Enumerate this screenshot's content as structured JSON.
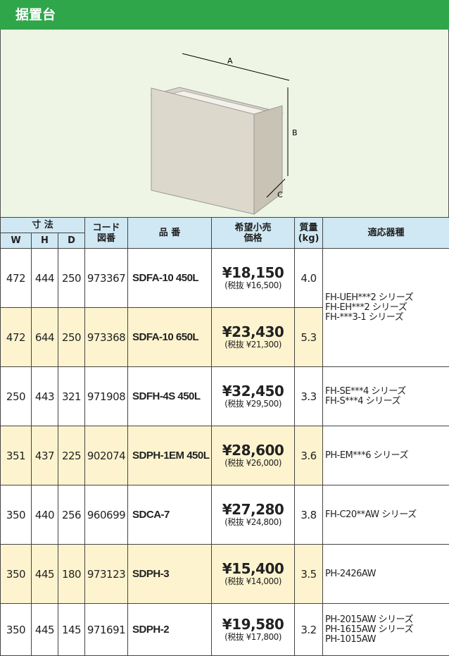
{
  "header": {
    "title": "据置台"
  },
  "figure": {
    "labels": [
      "A",
      "B",
      "C"
    ]
  },
  "table": {
    "head": {
      "size": "寸 法",
      "w": "W",
      "h": "H",
      "d": "D",
      "code": [
        "コード",
        "図番"
      ],
      "model": "品 番",
      "price": [
        "希望小売",
        "価格"
      ],
      "mass": [
        "質量",
        "(kg)"
      ],
      "compat": "適応器種"
    },
    "rows": [
      {
        "w": "472",
        "h": "444",
        "d": "250",
        "code": "973367",
        "model": "SDFA-10 450L",
        "price": "¥18,150",
        "tax": "(税抜 ¥16,500)",
        "mass": "4.0",
        "compat": [
          "FH-UEH***2 シリーズ",
          "FH-EH***2 シリーズ",
          "FH-***3-1 シリーズ"
        ]
      },
      {
        "w": "472",
        "h": "644",
        "d": "250",
        "code": "973368",
        "model": "SDFA-10 650L",
        "price": "¥23,430",
        "tax": "(税抜 ¥21,300)",
        "mass": "5.3"
      },
      {
        "w": "250",
        "h": "443",
        "d": "321",
        "code": "971908",
        "model": "SDFH-4S 450L",
        "price": "¥32,450",
        "tax": "(税抜 ¥29,500)",
        "mass": "3.3",
        "compat": [
          "FH-SE***4 シリーズ",
          "FH-S***4 シリーズ"
        ]
      },
      {
        "w": "351",
        "h": "437",
        "d": "225",
        "code": "902074",
        "model": "SDPH-1EM 450L",
        "price": "¥28,600",
        "tax": "(税抜 ¥26,000)",
        "mass": "3.6",
        "compat": [
          "PH-EM***6 シリーズ"
        ]
      },
      {
        "w": "350",
        "h": "440",
        "d": "256",
        "code": "960699",
        "model": "SDCA-7",
        "price": "¥27,280",
        "tax": "(税抜 ¥24,800)",
        "mass": "3.8",
        "compat": [
          "FH-C20**AW シリーズ"
        ]
      },
      {
        "w": "350",
        "h": "445",
        "d": "180",
        "code": "973123",
        "model": "SDPH-3",
        "price": "¥15,400",
        "tax": "(税抜 ¥14,000)",
        "mass": "3.5",
        "compat": [
          "PH-2426AW"
        ]
      },
      {
        "w": "350",
        "h": "445",
        "d": "145",
        "code": "971691",
        "model": "SDPH-2",
        "price": "¥19,580",
        "tax": "(税抜 ¥17,800)",
        "mass": "3.2",
        "compat": [
          "PH-2015AW シリーズ",
          "PH-1615AW シリーズ",
          "PH-1015AW"
        ]
      }
    ]
  }
}
